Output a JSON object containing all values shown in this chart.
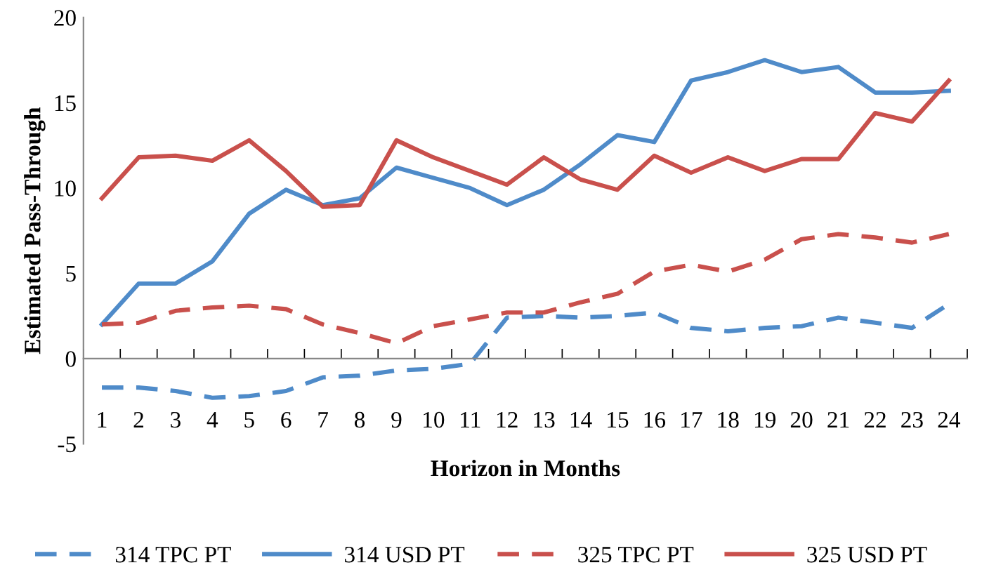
{
  "chart_data": {
    "type": "line",
    "xlabel": "Horizon in Months",
    "ylabel": "Estimated Pass-Through",
    "categories": [
      "1",
      "2",
      "3",
      "4",
      "5",
      "6",
      "7",
      "8",
      "9",
      "10",
      "11",
      "12",
      "13",
      "14",
      "15",
      "16",
      "17",
      "18",
      "19",
      "20",
      "21",
      "22",
      "23",
      "24"
    ],
    "series": [
      {
        "name": "314 TPC PT",
        "color": "#4f8bc9",
        "line_style": "dashed",
        "values": [
          -1.7,
          -1.7,
          -1.9,
          -2.3,
          -2.2,
          -1.9,
          -1.1,
          -1.0,
          -0.7,
          -0.6,
          -0.3,
          2.4,
          2.5,
          2.4,
          2.5,
          2.7,
          1.8,
          1.6,
          1.8,
          1.9,
          2.4,
          2.1,
          1.8,
          3.2
        ]
      },
      {
        "name": "314 USD PT",
        "color": "#4f8bc9",
        "line_style": "solid",
        "values": [
          2.0,
          4.4,
          4.4,
          5.7,
          8.5,
          9.9,
          9.0,
          9.4,
          11.2,
          10.6,
          10.0,
          9.0,
          9.9,
          11.4,
          13.1,
          12.7,
          16.3,
          16.8,
          17.5,
          16.8,
          17.1,
          15.6,
          15.6,
          15.7
        ]
      },
      {
        "name": "325 TPC PT",
        "color": "#c9504c",
        "line_style": "dashed",
        "values": [
          2.0,
          2.1,
          2.8,
          3.0,
          3.1,
          2.9,
          2.0,
          1.5,
          0.9,
          1.9,
          2.3,
          2.7,
          2.7,
          3.3,
          3.8,
          5.1,
          5.5,
          5.1,
          5.8,
          7.0,
          7.3,
          7.1,
          6.8,
          7.3
        ]
      },
      {
        "name": "325 USD PT",
        "color": "#c9504c",
        "line_style": "solid",
        "values": [
          9.4,
          11.8,
          11.9,
          11.6,
          12.8,
          11.0,
          8.9,
          9.0,
          12.8,
          11.8,
          11.0,
          10.2,
          11.8,
          10.5,
          9.9,
          11.9,
          10.9,
          11.8,
          11.0,
          11.7,
          11.7,
          14.4,
          13.9,
          16.3
        ]
      }
    ],
    "ylim": [
      -5,
      20
    ],
    "yticks": [
      -5,
      0,
      5,
      10,
      15,
      20
    ],
    "grid": false,
    "legend": "bottom",
    "marker": "none"
  }
}
